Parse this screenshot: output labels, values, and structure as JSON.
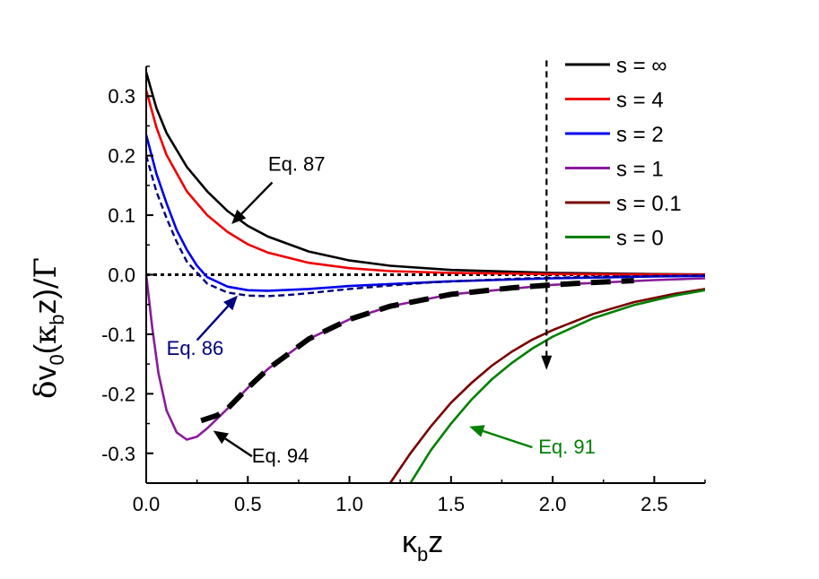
{
  "chart_data": {
    "type": "line",
    "xlabel": {
      "main": "κ",
      "sub": "b",
      "tail": "z"
    },
    "ylabel": {
      "delta": "δ",
      "v": "v",
      "sub0": "0",
      "open": "(",
      "kappa": "κ",
      "subb": "b",
      "z": "z",
      "close": ")",
      "slash": "/",
      "gamma": "Γ"
    },
    "xlim": [
      0,
      2.75
    ],
    "ylim": [
      -0.35,
      0.35
    ],
    "x_ticks": [
      "0.0",
      "0.5",
      "1.0",
      "1.5",
      "2.0",
      "2.5"
    ],
    "y_ticks": [
      "0.3",
      "0.2",
      "0.1",
      "0.0",
      "-0.1",
      "-0.2",
      "-0.3"
    ],
    "grid": false,
    "legend_position": "top-right",
    "series": [
      {
        "name": "s = ∞",
        "color": "#000000",
        "points": [
          [
            0,
            0.34
          ],
          [
            0.05,
            0.28
          ],
          [
            0.1,
            0.238
          ],
          [
            0.2,
            0.181
          ],
          [
            0.3,
            0.14
          ],
          [
            0.4,
            0.107
          ],
          [
            0.5,
            0.082
          ],
          [
            0.6,
            0.064
          ],
          [
            0.8,
            0.039
          ],
          [
            1.0,
            0.024
          ],
          [
            1.2,
            0.015
          ],
          [
            1.5,
            0.008
          ],
          [
            2.0,
            0.003
          ],
          [
            2.5,
            0.001
          ],
          [
            2.75,
            0.0005
          ]
        ]
      },
      {
        "name": "s = 4",
        "color": "#ee0000",
        "points": [
          [
            0,
            0.31
          ],
          [
            0.05,
            0.248
          ],
          [
            0.1,
            0.201
          ],
          [
            0.2,
            0.14
          ],
          [
            0.3,
            0.1
          ],
          [
            0.4,
            0.072
          ],
          [
            0.5,
            0.051
          ],
          [
            0.6,
            0.037
          ],
          [
            0.8,
            0.02
          ],
          [
            1.0,
            0.011
          ],
          [
            1.2,
            0.006
          ],
          [
            1.5,
            0.003
          ],
          [
            2.0,
            0.001
          ],
          [
            2.75,
            0.0002
          ]
        ]
      },
      {
        "name": "s = 2",
        "color": "#0000ee",
        "points": [
          [
            0,
            0.235
          ],
          [
            0.05,
            0.17
          ],
          [
            0.1,
            0.12
          ],
          [
            0.15,
            0.075
          ],
          [
            0.2,
            0.042
          ],
          [
            0.25,
            0.015
          ],
          [
            0.3,
            -0.004
          ],
          [
            0.4,
            -0.02
          ],
          [
            0.5,
            -0.026
          ],
          [
            0.6,
            -0.027
          ],
          [
            0.8,
            -0.024
          ],
          [
            1.0,
            -0.019
          ],
          [
            1.5,
            -0.011
          ],
          [
            2.0,
            -0.006
          ],
          [
            2.5,
            -0.003
          ],
          [
            2.75,
            -0.002
          ]
        ]
      },
      {
        "name": "s = 1",
        "color": "#8a1a9b",
        "points": [
          [
            0,
            0
          ],
          [
            0.03,
            -0.09
          ],
          [
            0.06,
            -0.165
          ],
          [
            0.1,
            -0.228
          ],
          [
            0.15,
            -0.265
          ],
          [
            0.2,
            -0.277
          ],
          [
            0.25,
            -0.272
          ],
          [
            0.3,
            -0.258
          ],
          [
            0.4,
            -0.225
          ],
          [
            0.5,
            -0.19
          ],
          [
            0.6,
            -0.158
          ],
          [
            0.8,
            -0.108
          ],
          [
            1.0,
            -0.075
          ],
          [
            1.2,
            -0.053
          ],
          [
            1.5,
            -0.033
          ],
          [
            2.0,
            -0.017
          ],
          [
            2.5,
            -0.009
          ],
          [
            2.75,
            -0.006
          ]
        ]
      },
      {
        "name": "s = 0.1",
        "color": "#7a0000",
        "points": [
          [
            1.2,
            -0.35
          ],
          [
            1.3,
            -0.3
          ],
          [
            1.4,
            -0.255
          ],
          [
            1.5,
            -0.215
          ],
          [
            1.6,
            -0.182
          ],
          [
            1.7,
            -0.153
          ],
          [
            1.8,
            -0.129
          ],
          [
            1.9,
            -0.109
          ],
          [
            2.0,
            -0.093
          ],
          [
            2.2,
            -0.066
          ],
          [
            2.4,
            -0.046
          ],
          [
            2.6,
            -0.032
          ],
          [
            2.75,
            -0.024
          ]
        ]
      },
      {
        "name": "s = 0",
        "color": "#008000",
        "points": [
          [
            1.3,
            -0.35
          ],
          [
            1.4,
            -0.295
          ],
          [
            1.5,
            -0.25
          ],
          [
            1.6,
            -0.21
          ],
          [
            1.7,
            -0.176
          ],
          [
            1.8,
            -0.148
          ],
          [
            1.9,
            -0.124
          ],
          [
            2.0,
            -0.104
          ],
          [
            2.2,
            -0.073
          ],
          [
            2.4,
            -0.051
          ],
          [
            2.6,
            -0.035
          ],
          [
            2.75,
            -0.026
          ]
        ]
      }
    ],
    "asymptotes": [
      {
        "label": "Eq. 86",
        "color": "#000080",
        "style": "dashed",
        "points": [
          [
            0,
            0.2
          ],
          [
            0.05,
            0.14
          ],
          [
            0.1,
            0.095
          ],
          [
            0.15,
            0.055
          ],
          [
            0.2,
            0.022
          ],
          [
            0.3,
            -0.015
          ],
          [
            0.4,
            -0.03
          ],
          [
            0.5,
            -0.035
          ],
          [
            0.6,
            -0.036
          ],
          [
            0.7,
            -0.034
          ],
          [
            0.8,
            -0.031
          ],
          [
            1.0,
            -0.024
          ],
          [
            1.2,
            -0.018
          ],
          [
            1.4,
            -0.013
          ],
          [
            1.6,
            -0.01
          ],
          [
            1.8,
            -0.007
          ],
          [
            2.0,
            -0.005
          ],
          [
            2.3,
            -0.003
          ],
          [
            2.75,
            -0.001
          ]
        ]
      },
      {
        "label": "Eq. 94",
        "color": "#000000",
        "style": "long-dashed",
        "points": [
          [
            0.27,
            -0.245
          ],
          [
            0.35,
            -0.236
          ],
          [
            0.4,
            -0.225
          ],
          [
            0.5,
            -0.19
          ],
          [
            0.6,
            -0.158
          ],
          [
            0.8,
            -0.108
          ],
          [
            1.0,
            -0.075
          ],
          [
            1.2,
            -0.053
          ],
          [
            1.5,
            -0.033
          ],
          [
            1.8,
            -0.022
          ],
          [
            2.0,
            -0.017
          ],
          [
            2.2,
            -0.013
          ],
          [
            2.4,
            -0.01
          ]
        ]
      }
    ],
    "zero_line": {
      "y": 0,
      "style": "dotted"
    },
    "arrow_down": {
      "x": 1.97,
      "y_from": 0.36,
      "y_to": -0.16,
      "style": "dashed"
    },
    "annotations": [
      {
        "text": "Eq. 87",
        "color": "#000000",
        "text_at": [
          0.6,
          0.175
        ],
        "arrow_from": [
          0.62,
          0.155
        ],
        "arrow_to": [
          0.42,
          0.085
        ]
      },
      {
        "text": "Eq. 86",
        "color": "#000080",
        "text_at": [
          0.1,
          -0.135
        ],
        "arrow_from": [
          0.25,
          -0.11
        ],
        "arrow_to": [
          0.45,
          -0.035
        ]
      },
      {
        "text": "Eq. 94",
        "color": "#000000",
        "text_at": [
          0.52,
          -0.315
        ],
        "arrow_from": [
          0.52,
          -0.305
        ],
        "arrow_to": [
          0.33,
          -0.262
        ]
      },
      {
        "text": "Eq. 91",
        "color": "#008000",
        "text_at": [
          1.93,
          -0.3
        ],
        "arrow_from": [
          1.9,
          -0.29
        ],
        "arrow_to": [
          1.59,
          -0.255
        ]
      }
    ]
  }
}
